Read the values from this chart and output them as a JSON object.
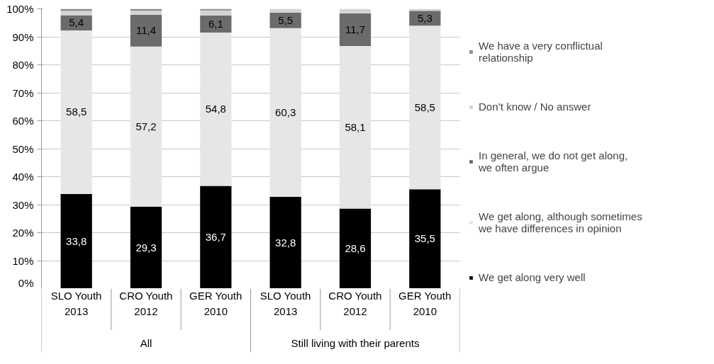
{
  "chart_data": {
    "type": "bar",
    "stacked": true,
    "categories": [
      "SLO Youth 2013",
      "CRO Youth 2012",
      "GER Youth 2010",
      "SLO Youth 2013",
      "CRO Youth 2012",
      "GER Youth 2010"
    ],
    "series": [
      {
        "name": "We get along very well",
        "color": "#000000",
        "values": [
          33.8,
          29.3,
          36.7,
          32.8,
          28.6,
          35.5
        ],
        "value_labels": [
          "33,8",
          "29,3",
          "36,7",
          "32,8",
          "28,6",
          "35,5"
        ]
      },
      {
        "name": "We get along, although sometimes we have differences in opinion",
        "color": "#e6e6e6",
        "values": [
          58.5,
          57.2,
          54.8,
          60.3,
          58.1,
          58.5
        ],
        "value_labels": [
          "58,5",
          "57,2",
          "54,8",
          "60,3",
          "58,1",
          "58,5"
        ]
      },
      {
        "name": "In general, we do not get along, we often argue",
        "color": "#6b6b6b",
        "values": [
          5.4,
          11.4,
          6.1,
          5.5,
          11.7,
          5.3
        ],
        "value_labels": [
          "5,4",
          "11,4",
          "6,1",
          "5,5",
          "11,7",
          "5,3"
        ]
      },
      {
        "name": "Don’t know / No answer",
        "color": "#d4d4d4",
        "values": [
          1.6,
          1.4,
          1.8,
          1.4,
          1.6,
          0.7
        ]
      },
      {
        "name": "We have a very conflictual relationship",
        "color": "#8c8c8c",
        "values": [
          0.7,
          0.7,
          0.6,
          0,
          0,
          0
        ]
      }
    ],
    "annotations": [
      "All",
      "Still living with their parents"
    ],
    "ylim": [
      0,
      100
    ],
    "yticks": [
      {
        "value": 0,
        "label": "0%"
      },
      {
        "value": 10,
        "label": "10%"
      },
      {
        "value": 20,
        "label": "20%"
      },
      {
        "value": 30,
        "label": "30%"
      },
      {
        "value": 40,
        "label": "40%"
      },
      {
        "value": 50,
        "label": "50%"
      },
      {
        "value": 60,
        "label": "60%"
      },
      {
        "value": 70,
        "label": "70%"
      },
      {
        "value": 80,
        "label": "80%"
      },
      {
        "value": 90,
        "label": "90%"
      },
      {
        "value": 100,
        "label": "100%"
      }
    ],
    "grid": "y",
    "legend": "right"
  }
}
